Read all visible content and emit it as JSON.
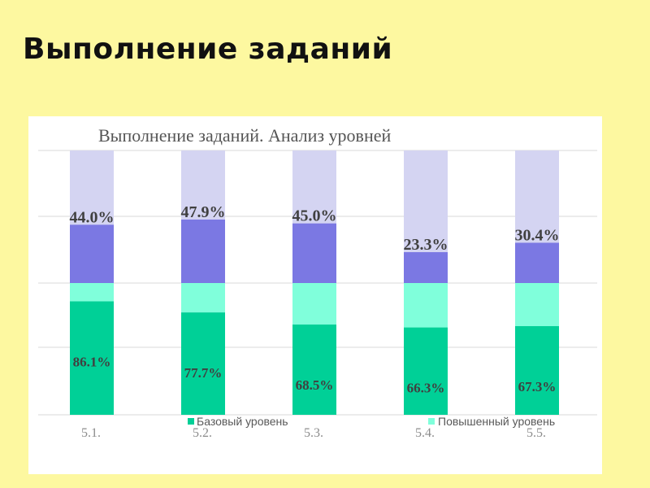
{
  "slide": {
    "title": "Выполнение заданий"
  },
  "colors": {
    "basic_lower": "#00d097",
    "basic_upper": "#80ffdb",
    "advanced_lower": "#7b78e3",
    "advanced_upper": "#d4d4f2",
    "label": "#404040",
    "tick": "#8c8c8c",
    "grid": "#d9d9d9"
  },
  "chart_data": {
    "type": "bar",
    "title": "Выполнение заданий. Анализ уровней",
    "categories": [
      "5.1.",
      "5.2.",
      "5.3.",
      "5.4.",
      "5.5."
    ],
    "series": [
      {
        "name": "Базовый уровень",
        "values": [
          86.1,
          77.7,
          68.5,
          66.3,
          67.3
        ],
        "labels": [
          "86.1%",
          "77.7%",
          "68.5%",
          "66.3%",
          "67.3%"
        ]
      },
      {
        "name": "Повышенный уровень",
        "values": [
          44.0,
          47.9,
          45.0,
          23.3,
          30.4
        ],
        "labels": [
          "44.0%",
          "47.9%",
          "45.0%",
          "23.3%",
          "30.4%"
        ]
      }
    ],
    "stacked": true,
    "grid": true,
    "legend": "bottom"
  }
}
